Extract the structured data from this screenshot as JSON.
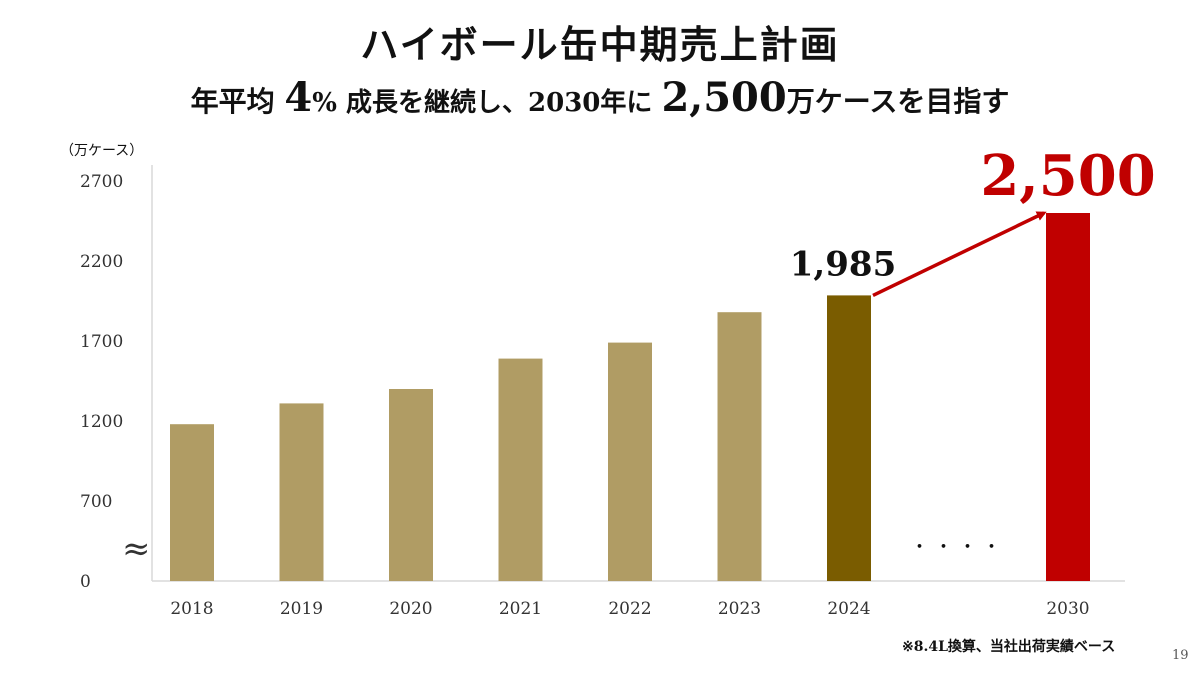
{
  "header": {
    "title": "ハイボール缶中期売上計画",
    "subtitle_parts": [
      "年平均 ",
      "4",
      "% 成長を継続し、2030年に ",
      "2,500",
      "万ケースを目指す"
    ]
  },
  "unit_label": "（万ケース）",
  "footnote": "※8.4L換算、当社出荷実績ベース",
  "page_number": "19",
  "colors": {
    "actual_bar": "#b09c64",
    "highlight_bar": "#7a5c00",
    "target_bar": "#c00000",
    "arrow": "#c00000"
  },
  "chart_data": {
    "type": "bar",
    "title": "",
    "xlabel": "",
    "ylabel": "（万ケース）",
    "categories": [
      "2018",
      "2019",
      "2020",
      "2021",
      "2022",
      "2023",
      "2024",
      "",
      "2030"
    ],
    "values": [
      1180,
      1310,
      1400,
      1590,
      1690,
      1880,
      1985,
      null,
      2500
    ],
    "yticks": [
      "0",
      "700",
      "1200",
      "1700",
      "2200",
      "2700"
    ],
    "axis_break": "≈",
    "gap_marker": "・・・・",
    "data_labels": [
      {
        "category": "2024",
        "text": "1,985"
      },
      {
        "category": "2030",
        "text": "2,500"
      }
    ],
    "annotation": "arrow from 2024 to 2030",
    "grid": false,
    "legend": "none"
  }
}
